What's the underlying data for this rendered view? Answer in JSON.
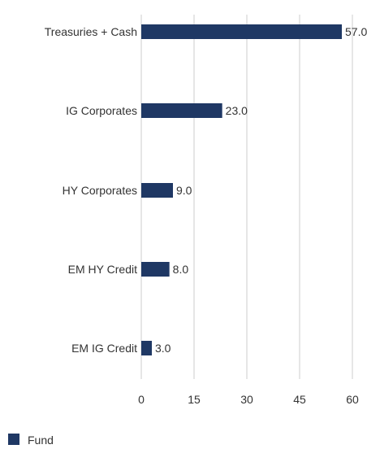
{
  "chart_data": {
    "type": "bar",
    "orientation": "horizontal",
    "categories": [
      "Treasuries + Cash",
      "IG Corporates",
      "HY Corporates",
      "EM HY Credit",
      "EM IG Credit"
    ],
    "series": [
      {
        "name": "Fund",
        "values": [
          57.0,
          23.0,
          9.0,
          8.0,
          3.0
        ],
        "color": "#1f3864"
      }
    ],
    "value_labels": [
      "57.0",
      "23.0",
      "9.0",
      "8.0",
      "3.0"
    ],
    "x_ticks": [
      "0",
      "15",
      "30",
      "45",
      "60"
    ],
    "xlim": [
      0,
      60
    ],
    "grid": true,
    "legend": "bottom-left"
  }
}
